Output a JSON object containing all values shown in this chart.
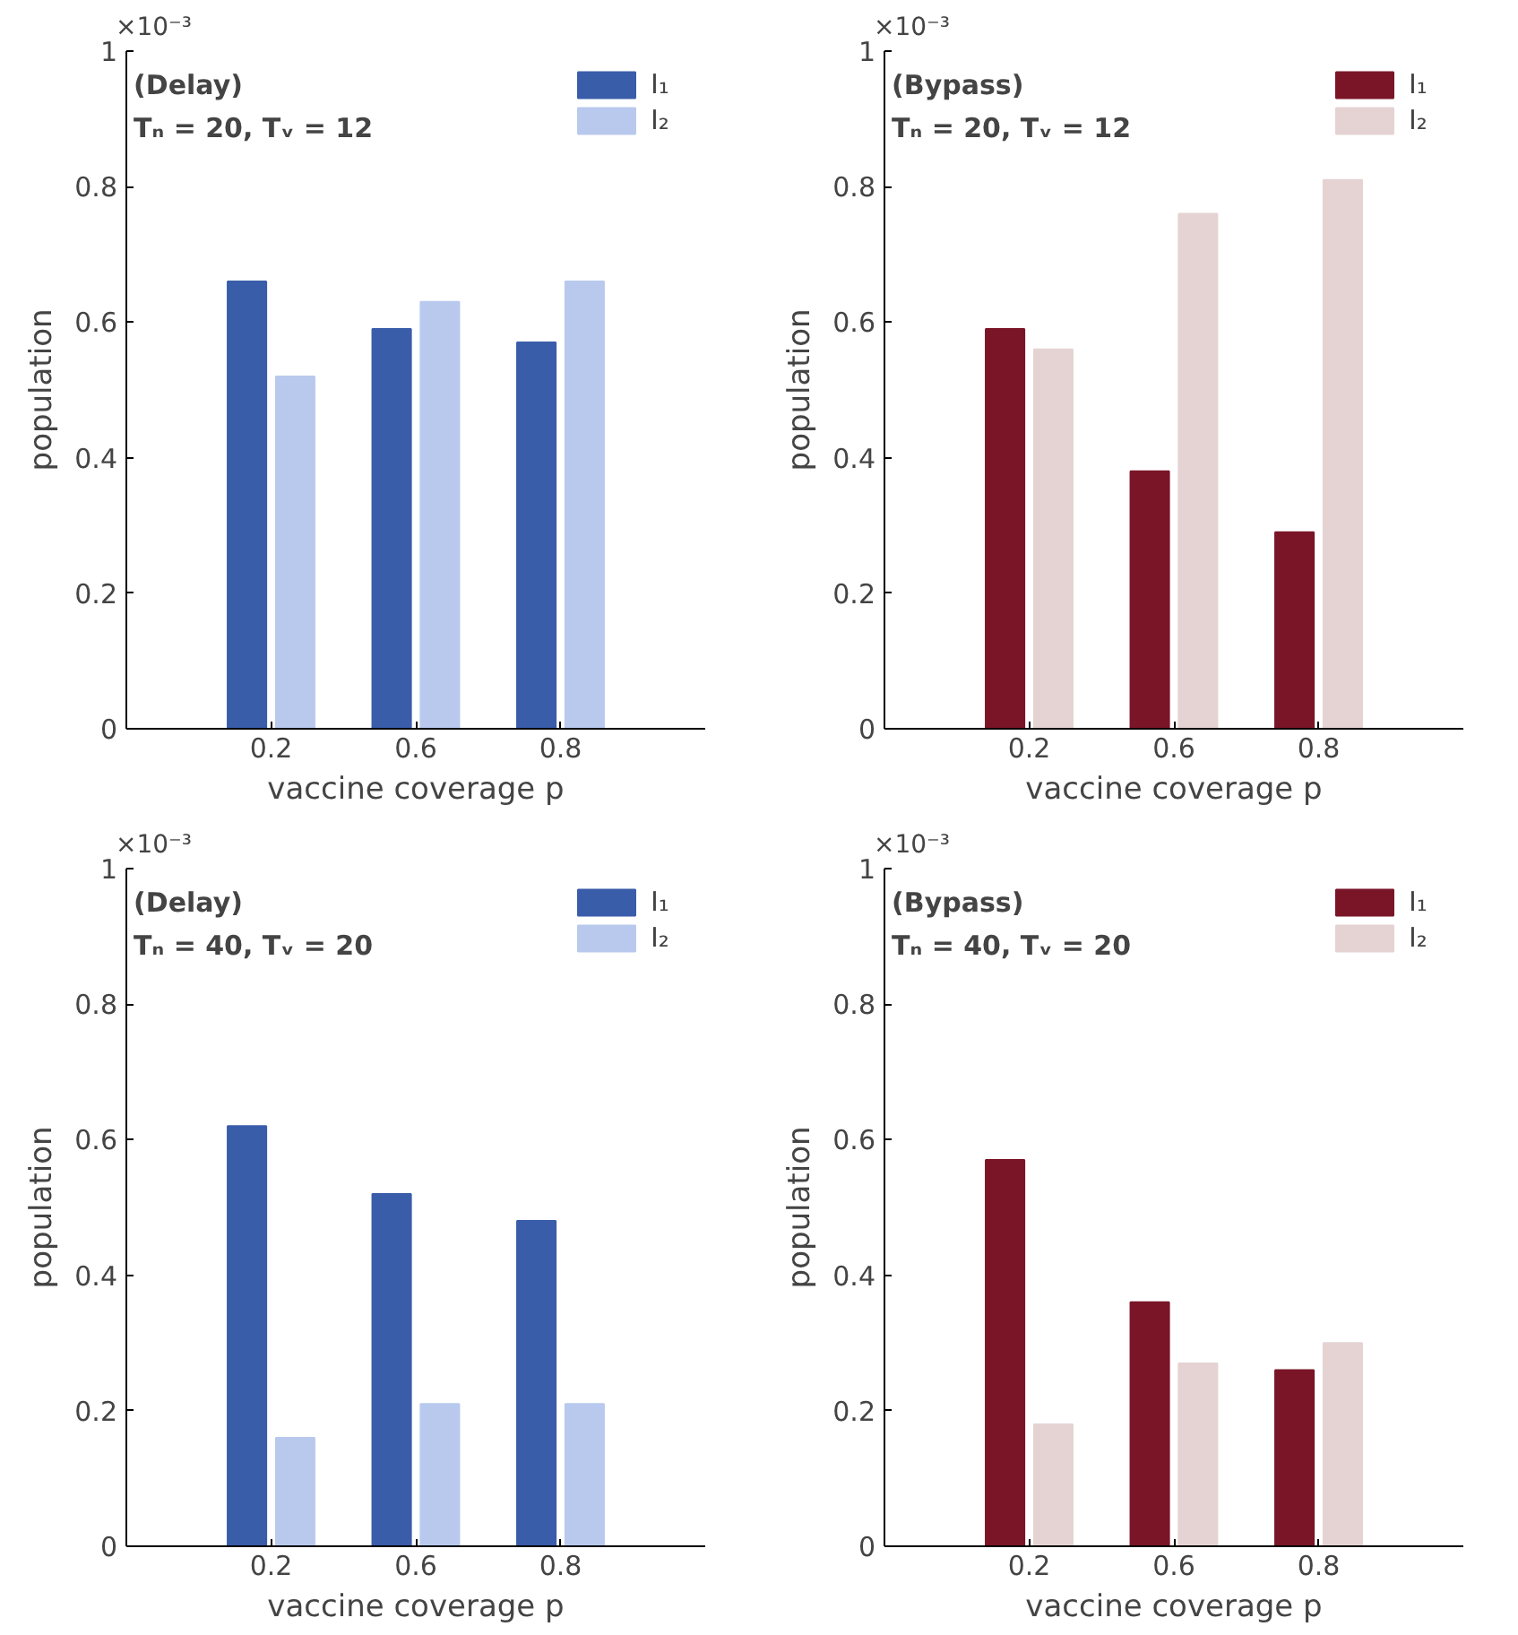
{
  "chart_data": [
    {
      "type": "bar",
      "categories": [
        "0.2",
        "0.6",
        "0.8"
      ],
      "xlabel": "vaccine coverage p",
      "ylabel": "population",
      "ylim": [
        0,
        1
      ],
      "yticks": [
        0,
        0.2,
        0.4,
        0.6,
        0.8,
        1
      ],
      "annotations": [
        "×10⁻³",
        "(Delay)",
        "Tₙ = 20, Tᵥ = 12"
      ],
      "legend": "top right",
      "series": [
        {
          "name": "I₁",
          "color": "#3a5daa",
          "values": [
            0.66,
            0.59,
            0.57
          ]
        },
        {
          "name": "I₂",
          "color": "#b9c9ee",
          "values": [
            0.52,
            0.63,
            0.66
          ]
        }
      ]
    },
    {
      "type": "bar",
      "categories": [
        "0.2",
        "0.6",
        "0.8"
      ],
      "xlabel": "vaccine coverage p",
      "ylabel": "population",
      "ylim": [
        0,
        1
      ],
      "yticks": [
        0,
        0.2,
        0.4,
        0.6,
        0.8,
        1
      ],
      "annotations": [
        "×10⁻³",
        "(Bypass)",
        "Tₙ = 20, Tᵥ = 12"
      ],
      "legend": "top right",
      "series": [
        {
          "name": "I₁",
          "color": "#7a1528",
          "values": [
            0.59,
            0.38,
            0.29
          ]
        },
        {
          "name": "I₂",
          "color": "#e5d3d3",
          "values": [
            0.56,
            0.76,
            0.81
          ]
        }
      ]
    },
    {
      "type": "bar",
      "categories": [
        "0.2",
        "0.6",
        "0.8"
      ],
      "xlabel": "vaccine coverage p",
      "ylabel": "population",
      "ylim": [
        0,
        1
      ],
      "yticks": [
        0,
        0.2,
        0.4,
        0.6,
        0.8,
        1
      ],
      "annotations": [
        "×10⁻³",
        "(Delay)",
        "Tₙ = 40, Tᵥ = 20"
      ],
      "legend": "top right",
      "series": [
        {
          "name": "I₁",
          "color": "#3a5daa",
          "values": [
            0.62,
            0.52,
            0.48
          ]
        },
        {
          "name": "I₂",
          "color": "#b9c9ee",
          "values": [
            0.16,
            0.21,
            0.21
          ]
        }
      ]
    },
    {
      "type": "bar",
      "categories": [
        "0.2",
        "0.6",
        "0.8"
      ],
      "xlabel": "vaccine coverage p",
      "ylabel": "population",
      "ylim": [
        0,
        1
      ],
      "yticks": [
        0,
        0.2,
        0.4,
        0.6,
        0.8,
        1
      ],
      "annotations": [
        "×10⁻³",
        "(Bypass)",
        "Tₙ = 40, Tᵥ = 20"
      ],
      "legend": "top right",
      "series": [
        {
          "name": "I₁",
          "color": "#7a1528",
          "values": [
            0.57,
            0.36,
            0.26
          ]
        },
        {
          "name": "I₂",
          "color": "#e5d3d3",
          "values": [
            0.18,
            0.27,
            0.3
          ]
        }
      ]
    }
  ]
}
